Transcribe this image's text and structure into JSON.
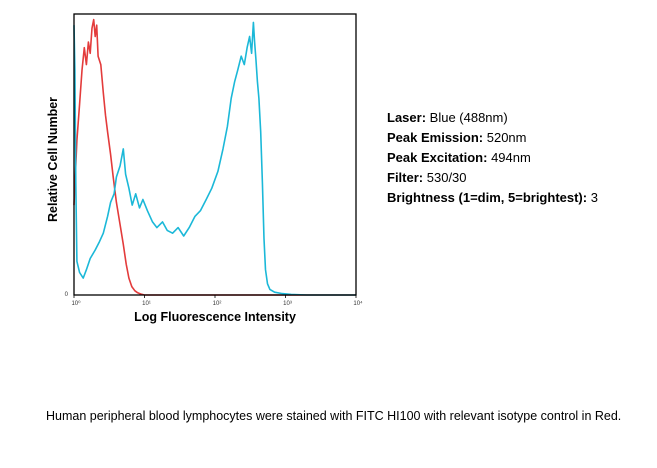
{
  "chart_data": {
    "type": "line",
    "title": "",
    "xlabel": "Log Fluorescence Intensity",
    "ylabel": "Relative Cell Number",
    "x_scale": "log",
    "xlim": [
      1,
      10000
    ],
    "ylim": [
      0,
      100
    ],
    "x_ticks": [
      {
        "value": 1,
        "label": "10⁰"
      },
      {
        "value": 10,
        "label": "10¹"
      },
      {
        "value": 100,
        "label": "10²"
      },
      {
        "value": 1000,
        "label": "10³"
      },
      {
        "value": 10000,
        "label": "10⁴"
      }
    ],
    "y_ticks": [
      {
        "value": 0,
        "label": "0"
      }
    ],
    "grid": false,
    "legend": "none",
    "series": [
      {
        "color": "#e33b3b",
        "points": [
          [
            1.0,
            32
          ],
          [
            1.1,
            55
          ],
          [
            1.2,
            68
          ],
          [
            1.3,
            80
          ],
          [
            1.4,
            88
          ],
          [
            1.5,
            82
          ],
          [
            1.6,
            90
          ],
          [
            1.7,
            86
          ],
          [
            1.8,
            95
          ],
          [
            1.9,
            98
          ],
          [
            2.0,
            92
          ],
          [
            2.1,
            96
          ],
          [
            2.2,
            85
          ],
          [
            2.4,
            82
          ],
          [
            2.6,
            72
          ],
          [
            2.8,
            64
          ],
          [
            3.0,
            58
          ],
          [
            3.3,
            50
          ],
          [
            3.6,
            42
          ],
          [
            4.0,
            33
          ],
          [
            4.5,
            25
          ],
          [
            5.0,
            18
          ],
          [
            5.5,
            11
          ],
          [
            6.0,
            6
          ],
          [
            6.6,
            3
          ],
          [
            7.3,
            1.5
          ],
          [
            8.0,
            0.8
          ],
          [
            9.0,
            0.3
          ],
          [
            10,
            0
          ],
          [
            100,
            0
          ],
          [
            1000,
            0
          ],
          [
            10000,
            0
          ]
        ]
      },
      {
        "color": "#1bb8d8",
        "points": [
          [
            1.0,
            96
          ],
          [
            1.03,
            80
          ],
          [
            1.06,
            40
          ],
          [
            1.1,
            12
          ],
          [
            1.2,
            8
          ],
          [
            1.35,
            6
          ],
          [
            1.5,
            9
          ],
          [
            1.7,
            13
          ],
          [
            2.0,
            16
          ],
          [
            2.3,
            19
          ],
          [
            2.6,
            22
          ],
          [
            3.0,
            28
          ],
          [
            3.3,
            33
          ],
          [
            3.7,
            36
          ],
          [
            4.0,
            42
          ],
          [
            4.5,
            46
          ],
          [
            5.0,
            52
          ],
          [
            5.4,
            43
          ],
          [
            6.0,
            38
          ],
          [
            6.7,
            32
          ],
          [
            7.5,
            36
          ],
          [
            8.5,
            31
          ],
          [
            9.5,
            34
          ],
          [
            11,
            30
          ],
          [
            13,
            26
          ],
          [
            15,
            24
          ],
          [
            18,
            26
          ],
          [
            21,
            23
          ],
          [
            25,
            22
          ],
          [
            30,
            24
          ],
          [
            36,
            21
          ],
          [
            43,
            24
          ],
          [
            52,
            28
          ],
          [
            62,
            30
          ],
          [
            75,
            34
          ],
          [
            90,
            38
          ],
          [
            110,
            44
          ],
          [
            130,
            52
          ],
          [
            150,
            60
          ],
          [
            170,
            70
          ],
          [
            190,
            76
          ],
          [
            210,
            80
          ],
          [
            235,
            85
          ],
          [
            260,
            82
          ],
          [
            285,
            88
          ],
          [
            310,
            92
          ],
          [
            330,
            86
          ],
          [
            350,
            97
          ],
          [
            365,
            90
          ],
          [
            380,
            84
          ],
          [
            400,
            76
          ],
          [
            420,
            70
          ],
          [
            445,
            58
          ],
          [
            470,
            40
          ],
          [
            495,
            20
          ],
          [
            520,
            9
          ],
          [
            555,
            4
          ],
          [
            600,
            2
          ],
          [
            700,
            1
          ],
          [
            900,
            0.5
          ],
          [
            1200,
            0.2
          ],
          [
            2000,
            0
          ],
          [
            10000,
            0
          ]
        ]
      }
    ]
  },
  "specs": {
    "laser_label": "Laser:",
    "laser_value": "Blue (488nm)",
    "emission_label": "Peak Emission:",
    "emission_value": "520nm",
    "excitation_label": "Peak Excitation:",
    "excitation_value": "494nm",
    "filter_label": "Filter:",
    "filter_value": "530/30",
    "brightness_label": "Brightness (1=dim, 5=brightest):",
    "brightness_value": "3"
  },
  "caption": "Human peripheral blood lymphocytes were stained with FITC HI100 with relevant isotype control in Red."
}
